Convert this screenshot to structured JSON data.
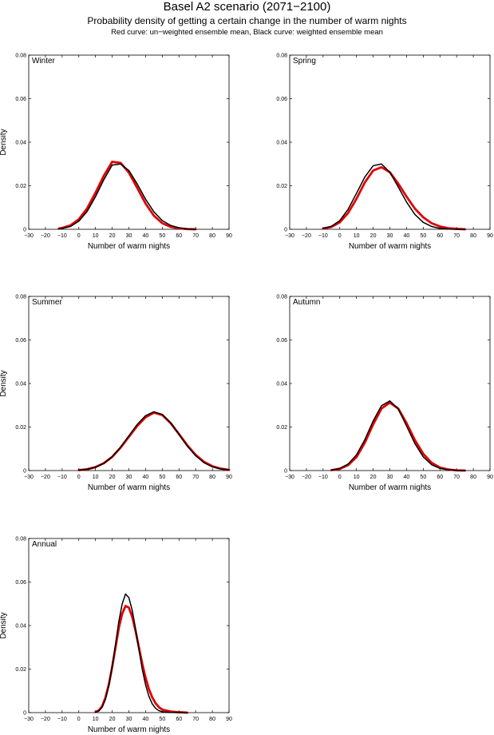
{
  "header": {
    "title": "Basel A2 scenario (2071−2100)",
    "subtitle": "Probability density of getting a certain change in the number of warm nights",
    "caption": "Red curve: un−weighted ensemble mean, Black curve: weighted ensemble mean"
  },
  "colors": {
    "unweighted": "#e00000",
    "weighted": "#000000"
  },
  "chart_data": [
    {
      "type": "line",
      "panel": "Winter",
      "xlabel": "Number of warm nights",
      "ylabel": "Density",
      "xlim": [
        -30,
        90
      ],
      "ylim": [
        0,
        0.08
      ],
      "xticks": [
        -30,
        -20,
        -10,
        0,
        10,
        20,
        30,
        40,
        50,
        60,
        70,
        80,
        90
      ],
      "xtick_labels": [
        "−30",
        "−20",
        "−10",
        "0",
        "10",
        "20",
        "30",
        "40",
        "50",
        "60",
        "70",
        "80",
        "90"
      ],
      "yticks": [
        0,
        0.02,
        0.04,
        0.06,
        0.08
      ],
      "ytick_labels": [
        "0",
        "0.02",
        "0.04",
        "0.06",
        "0.08"
      ],
      "grid": false,
      "x": [
        -12,
        -10,
        -5,
        0,
        5,
        10,
        15,
        20,
        25,
        30,
        35,
        40,
        45,
        50,
        55,
        60,
        65,
        70
      ],
      "series": [
        {
          "color": "#e00000",
          "values": [
            0.0003,
            0.0006,
            0.0018,
            0.0046,
            0.0096,
            0.0168,
            0.0246,
            0.031,
            0.0305,
            0.026,
            0.019,
            0.0118,
            0.0062,
            0.0028,
            0.0011,
            0.0004,
            0.0001,
            0.0
          ]
        },
        {
          "color": "#000000",
          "values": [
            0.0002,
            0.0004,
            0.0013,
            0.0037,
            0.0082,
            0.015,
            0.0228,
            0.0295,
            0.03,
            0.027,
            0.0208,
            0.0138,
            0.008,
            0.004,
            0.0018,
            0.0007,
            0.0002,
            0.0
          ]
        }
      ]
    },
    {
      "type": "line",
      "panel": "Spring",
      "xlabel": "Number of warm nights",
      "ylabel": "",
      "xlim": [
        -30,
        90
      ],
      "ylim": [
        0,
        0.08
      ],
      "xticks": [
        -30,
        -20,
        -10,
        0,
        10,
        20,
        30,
        40,
        50,
        60,
        70,
        80,
        90
      ],
      "xtick_labels": [
        "−30",
        "−20",
        "−10",
        "0",
        "10",
        "20",
        "30",
        "40",
        "50",
        "60",
        "70",
        "80",
        "90"
      ],
      "yticks": [
        0,
        0.02,
        0.04,
        0.06,
        0.08
      ],
      "ytick_labels": [
        "0",
        "0.02",
        "0.04",
        "0.06",
        "0.08"
      ],
      "grid": false,
      "x": [
        -10,
        -5,
        0,
        5,
        10,
        15,
        20,
        25,
        30,
        35,
        40,
        45,
        50,
        55,
        60,
        65,
        70,
        75
      ],
      "series": [
        {
          "color": "#e00000",
          "values": [
            0.0003,
            0.0011,
            0.0032,
            0.0075,
            0.014,
            0.0215,
            0.027,
            0.0285,
            0.0262,
            0.021,
            0.015,
            0.0095,
            0.0055,
            0.0028,
            0.0013,
            0.0005,
            0.0002,
            0.0
          ]
        },
        {
          "color": "#000000",
          "values": [
            0.0004,
            0.0014,
            0.004,
            0.0092,
            0.0165,
            0.024,
            0.0292,
            0.03,
            0.0262,
            0.0195,
            0.0125,
            0.0068,
            0.0032,
            0.0013,
            0.0004,
            0.0001,
            0.0,
            0.0
          ]
        }
      ]
    },
    {
      "type": "line",
      "panel": "Summer",
      "xlabel": "Number of warm nights",
      "ylabel": "Density",
      "xlim": [
        -30,
        90
      ],
      "ylim": [
        0,
        0.08
      ],
      "xticks": [
        -30,
        -20,
        -10,
        0,
        10,
        20,
        30,
        40,
        50,
        60,
        70,
        80,
        90
      ],
      "xtick_labels": [
        "−30",
        "−20",
        "−10",
        "0",
        "10",
        "20",
        "30",
        "40",
        "50",
        "60",
        "70",
        "80",
        "90"
      ],
      "yticks": [
        0,
        0.02,
        0.04,
        0.06,
        0.08
      ],
      "ytick_labels": [
        "0",
        "0.02",
        "0.04",
        "0.06",
        "0.08"
      ],
      "grid": false,
      "x": [
        0,
        5,
        10,
        15,
        20,
        25,
        30,
        35,
        40,
        45,
        50,
        55,
        60,
        65,
        70,
        75,
        80,
        85,
        90
      ],
      "series": [
        {
          "color": "#e00000",
          "values": [
            0.0002,
            0.0006,
            0.0016,
            0.0034,
            0.0063,
            0.0105,
            0.0155,
            0.0205,
            0.0245,
            0.0266,
            0.0255,
            0.0218,
            0.0168,
            0.0116,
            0.0072,
            0.004,
            0.002,
            0.0009,
            0.0003
          ]
        },
        {
          "color": "#000000",
          "values": [
            0.0002,
            0.0006,
            0.0015,
            0.0033,
            0.0063,
            0.0108,
            0.016,
            0.0212,
            0.0252,
            0.027,
            0.0258,
            0.022,
            0.0166,
            0.0112,
            0.0068,
            0.0036,
            0.0017,
            0.0007,
            0.0003
          ]
        }
      ]
    },
    {
      "type": "line",
      "panel": "Autumn",
      "xlabel": "Number of warm nights",
      "ylabel": "",
      "xlim": [
        -30,
        90
      ],
      "ylim": [
        0,
        0.08
      ],
      "xticks": [
        -30,
        -20,
        -10,
        0,
        10,
        20,
        30,
        40,
        50,
        60,
        70,
        80,
        90
      ],
      "xtick_labels": [
        "−30",
        "−20",
        "−10",
        "0",
        "10",
        "20",
        "30",
        "40",
        "50",
        "60",
        "70",
        "80",
        "90"
      ],
      "yticks": [
        0,
        0.02,
        0.04,
        0.06,
        0.08
      ],
      "ytick_labels": [
        "0",
        "0.02",
        "0.04",
        "0.06",
        "0.08"
      ],
      "grid": false,
      "x": [
        -5,
        0,
        5,
        10,
        15,
        20,
        25,
        30,
        35,
        40,
        45,
        50,
        55,
        60,
        65,
        70,
        75
      ],
      "series": [
        {
          "color": "#e00000",
          "values": [
            0.0002,
            0.0008,
            0.0025,
            0.0062,
            0.0128,
            0.0212,
            0.0285,
            0.0312,
            0.0285,
            0.0218,
            0.014,
            0.0077,
            0.0036,
            0.0014,
            0.0005,
            0.0001,
            0.0
          ]
        },
        {
          "color": "#000000",
          "values": [
            0.0002,
            0.001,
            0.003,
            0.0072,
            0.0142,
            0.0228,
            0.0298,
            0.032,
            0.0283,
            0.0205,
            0.0124,
            0.0063,
            0.0027,
            0.001,
            0.0003,
            0.0001,
            0.0
          ]
        }
      ]
    },
    {
      "type": "line",
      "panel": "Annual",
      "xlabel": "Number of warm nights",
      "ylabel": "Density",
      "xlim": [
        -30,
        90
      ],
      "ylim": [
        0,
        0.08
      ],
      "xticks": [
        -30,
        -20,
        -10,
        0,
        10,
        20,
        30,
        40,
        50,
        60,
        70,
        80,
        90
      ],
      "xtick_labels": [
        "−30",
        "−20",
        "−10",
        "0",
        "10",
        "20",
        "30",
        "40",
        "50",
        "60",
        "70",
        "80",
        "90"
      ],
      "yticks": [
        0,
        0.02,
        0.04,
        0.06,
        0.08
      ],
      "ytick_labels": [
        "0",
        "0.02",
        "0.04",
        "0.06",
        "0.08"
      ],
      "grid": false,
      "x": [
        10,
        12,
        14,
        16,
        18,
        20,
        22,
        24,
        26,
        28,
        30,
        32,
        34,
        36,
        38,
        40,
        42,
        44,
        46,
        48,
        50,
        55,
        60,
        65
      ],
      "series": [
        {
          "color": "#e00000",
          "values": [
            0.0003,
            0.001,
            0.003,
            0.007,
            0.013,
            0.021,
            0.03,
            0.039,
            0.0455,
            0.049,
            0.0482,
            0.044,
            0.0375,
            0.03,
            0.0225,
            0.016,
            0.0108,
            0.007,
            0.0043,
            0.0025,
            0.0014,
            0.0005,
            0.0002,
            0.0
          ]
        },
        {
          "color": "#000000",
          "values": [
            0.0002,
            0.0008,
            0.0025,
            0.0062,
            0.0125,
            0.0212,
            0.0315,
            0.042,
            0.05,
            0.0545,
            0.0528,
            0.047,
            0.0385,
            0.029,
            0.02,
            0.0128,
            0.0075,
            0.004,
            0.002,
            0.0009,
            0.0004,
            0.0001,
            0.0,
            0.0
          ]
        }
      ]
    }
  ]
}
